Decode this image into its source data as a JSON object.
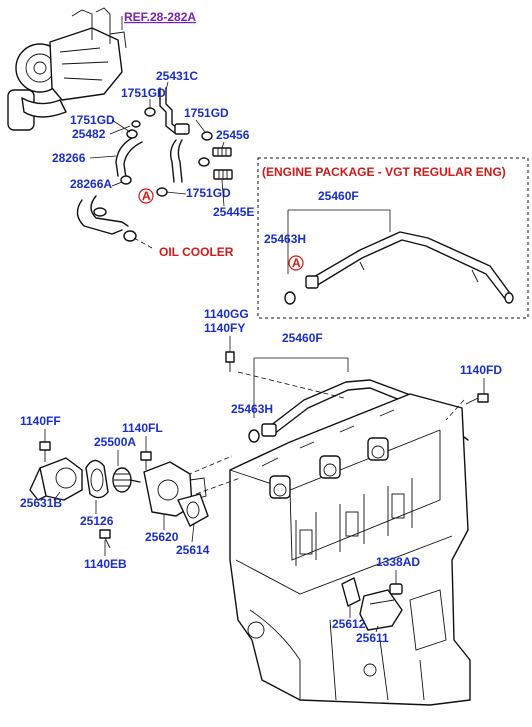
{
  "ref_label": "REF.28-282A",
  "package_note": "(ENGINE PACKAGE - VGT REGULAR ENG)",
  "oil_cooler_label": "OIL COOLER",
  "marker_letter": "A",
  "parts": {
    "p25431C": "25431C",
    "p1751GD_a": "1751GD",
    "p1751GD_b": "1751GD",
    "p1751GD_c": "1751GD",
    "p1751GD_d": "1751GD",
    "p25482": "25482",
    "p25456": "25456",
    "p28266": "28266",
    "p28266A": "28266A",
    "p25445E": "25445E",
    "p25460F_top": "25460F",
    "p25463H_top": "25463H",
    "p1140GG": "1140GG",
    "p1140FY": "1140FY",
    "p25460F": "25460F",
    "p1140FD": "1140FD",
    "p25463H": "25463H",
    "p1140FF": "1140FF",
    "p1140FL": "1140FL",
    "p25500A": "25500A",
    "p25631B": "25631B",
    "p25126": "25126",
    "p1140EB": "1140EB",
    "p25620": "25620",
    "p25614": "25614",
    "p1338AD": "1338AD",
    "p25612": "25612",
    "p25611": "25611"
  },
  "colors": {
    "part_number": "#1a2ec8",
    "reference": "#7a1fb8",
    "warning": "#d21919"
  }
}
